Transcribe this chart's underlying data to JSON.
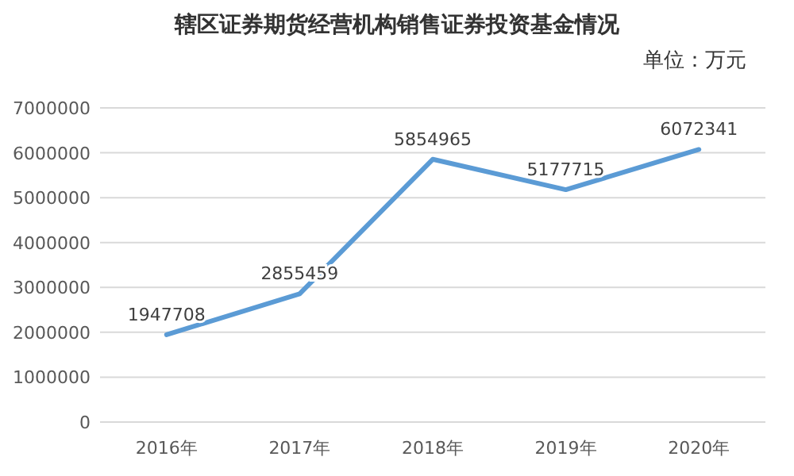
{
  "chart_data": {
    "type": "line",
    "title": "辖区证券期货经营机构销售证券投资基金情况",
    "subtitle": "单位：万元",
    "categories": [
      "2016年",
      "2017年",
      "2018年",
      "2019年",
      "2020年"
    ],
    "series": [
      {
        "color": "#5b9bd5",
        "values": [
          1947708,
          2855459,
          5854965,
          5177715,
          6072341
        ]
      }
    ],
    "ylim": [
      0,
      7000000
    ],
    "yticks": [
      0,
      1000000,
      2000000,
      3000000,
      4000000,
      5000000,
      6000000,
      7000000
    ],
    "grid": "y",
    "data_labels": true,
    "line_style": "solid"
  }
}
